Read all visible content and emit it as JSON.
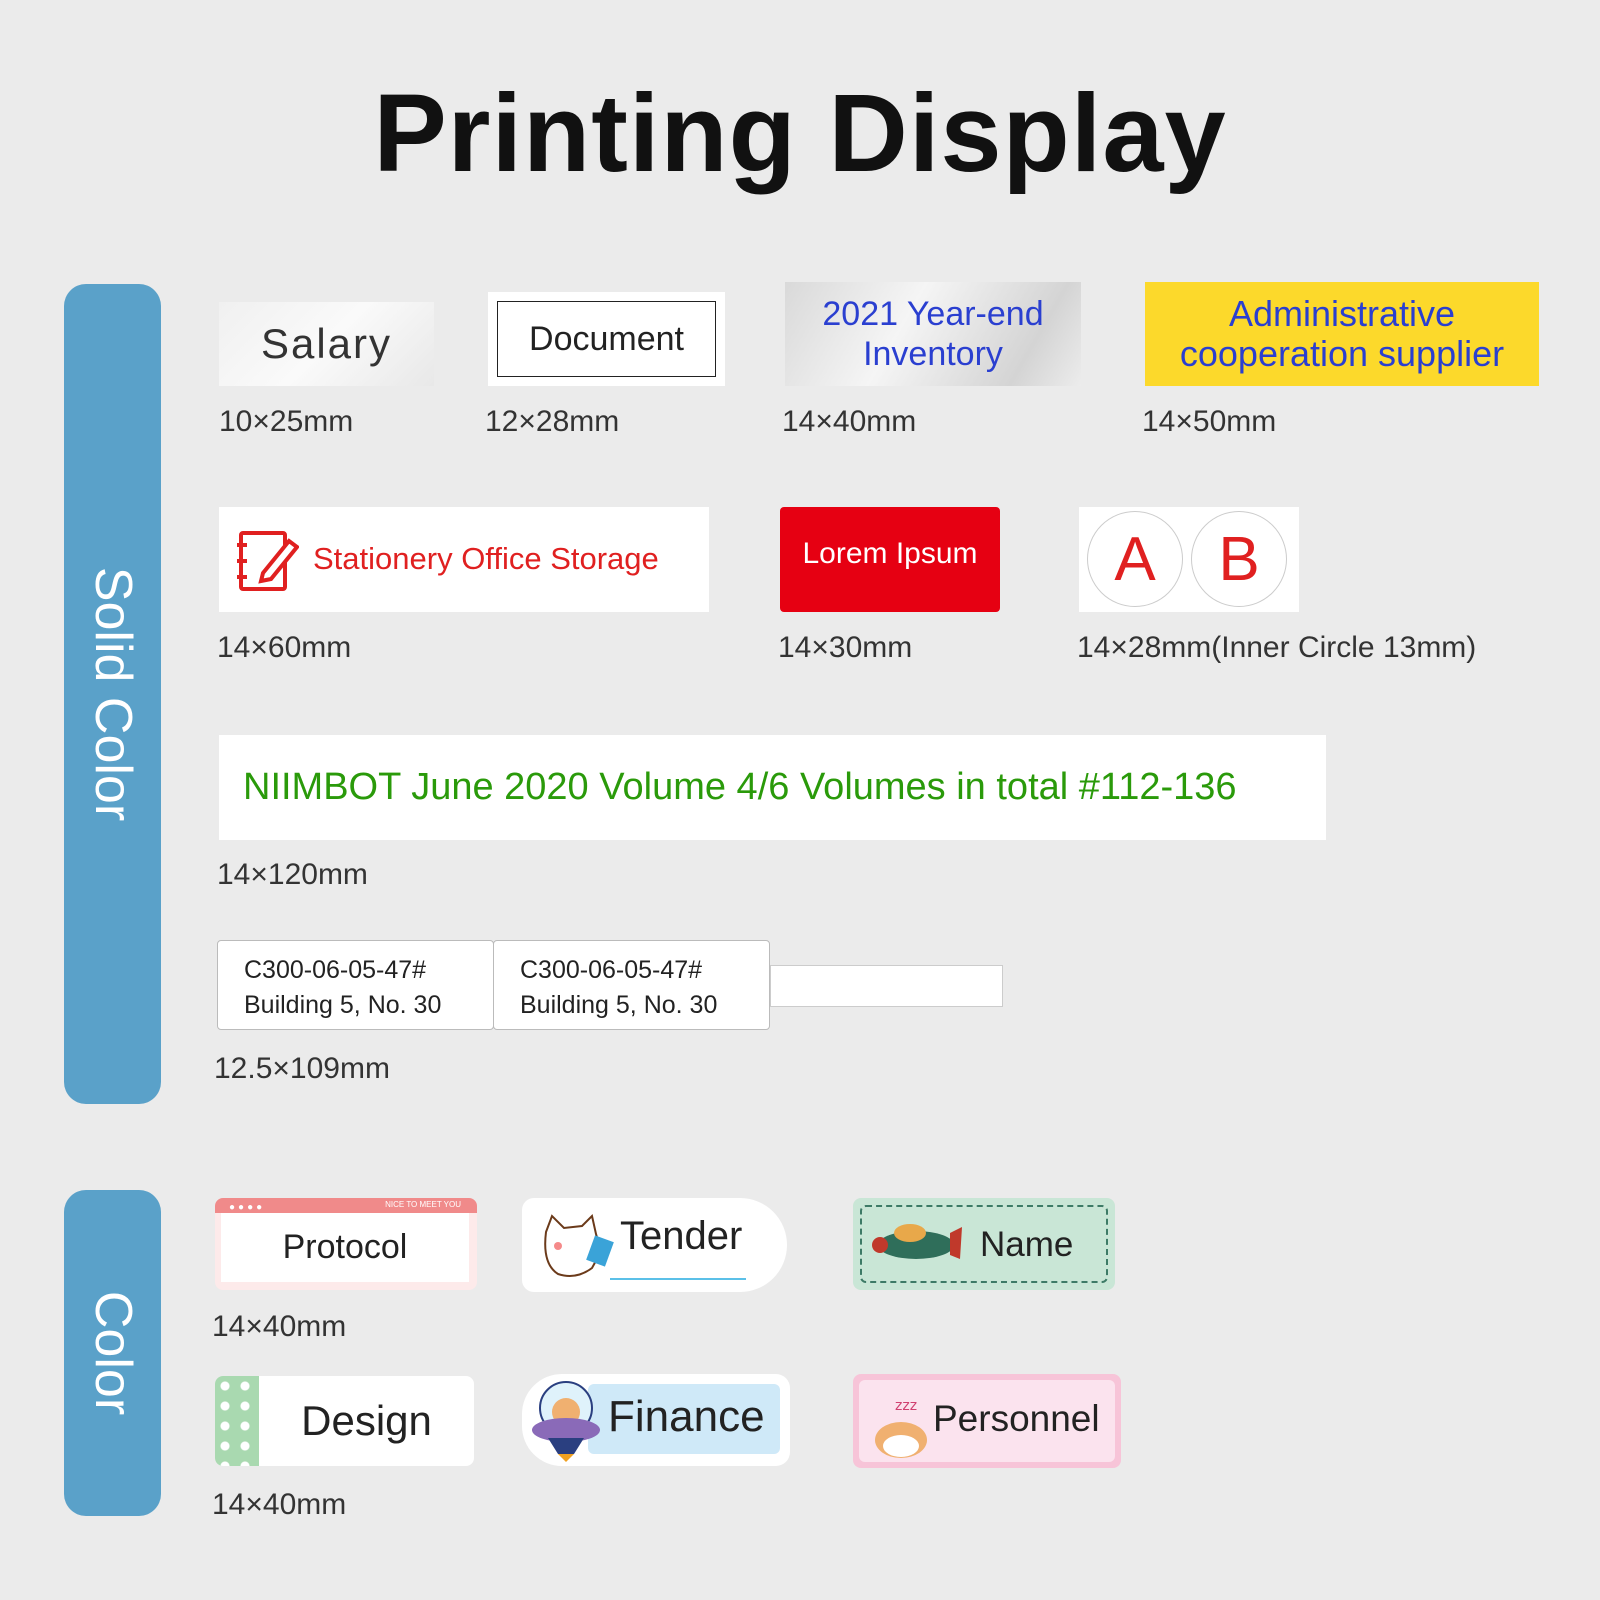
{
  "title": "Printing Display",
  "sections": {
    "solid": "Solid Color",
    "color": "Color"
  },
  "solid_labels": [
    {
      "text": "Salary",
      "size": "10×25mm"
    },
    {
      "text": "Document",
      "size": "12×28mm"
    },
    {
      "text": "2021 Year-end Inventory",
      "size": "14×40mm"
    },
    {
      "text": "Administrative cooperation supplier",
      "size": "14×50mm"
    },
    {
      "text": "Stationery Office Storage",
      "size": "14×60mm",
      "icon": "notebook-pencil-icon"
    },
    {
      "text": "Lorem Ipsum",
      "size": "14×30mm"
    },
    {
      "text_a": "A",
      "text_b": "B",
      "size": "14×28mm(Inner Circle  13mm)"
    },
    {
      "text": "NIIMBOT June 2020 Volume 4/6 Volumes in total #112-136",
      "size": "14×120mm"
    },
    {
      "line1": "C300-06-05-47#",
      "line2": "Building 5, No. 30",
      "size": "12.5×109mm"
    }
  ],
  "color_labels": [
    {
      "text": "Protocol",
      "banner": "NICE TO MEET YOU",
      "icon": "window-dots-icon"
    },
    {
      "text": "Tender",
      "icon": "cat-with-book-icon"
    },
    {
      "text": "Name",
      "icon": "airplane-icon"
    },
    {
      "text": "Design",
      "icon": "polka-dot-icon"
    },
    {
      "text": "Finance",
      "icon": "cat-ufo-icon"
    },
    {
      "text": "Personnel",
      "icon": "sleeping-dog-icon"
    }
  ],
  "color_sizes": [
    "14×40mm",
    "14×40mm"
  ],
  "colors": {
    "bar": "#5aa1c9",
    "blue_text": "#2a3fd0",
    "red": "#e60012",
    "yellow": "#fcd92b",
    "green_text": "#2a9a0a"
  }
}
